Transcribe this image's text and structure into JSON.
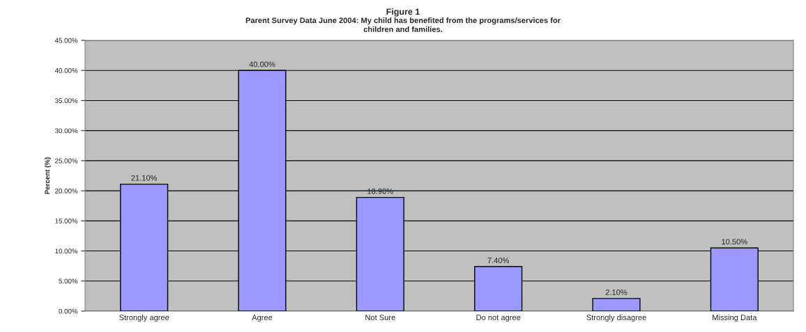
{
  "chart_data": {
    "type": "bar",
    "title": "Figure 1",
    "subtitle": "Parent Survey Data June 2004: My child has benefited from the programs/services for\nchildren and families.",
    "ylabel": "Percent (%)",
    "categories": [
      "Strongly agree",
      "Agree",
      "Not Sure",
      "Do not agree",
      "Strongly disagree",
      "Missing Data"
    ],
    "values": [
      21.1,
      40.0,
      18.9,
      7.4,
      2.1,
      10.5
    ],
    "value_labels": [
      "21.10%",
      "40.00%",
      "18.90%",
      "7.40%",
      "2.10%",
      "10.50%"
    ],
    "color": "#9999ff",
    "ylim": [
      0,
      45
    ],
    "yticks": [
      {
        "value": 0,
        "label": "0.00%"
      },
      {
        "value": 5,
        "label": "5.00%"
      },
      {
        "value": 10,
        "label": "10.00%"
      },
      {
        "value": 15,
        "label": "15.00%"
      },
      {
        "value": 20,
        "label": "20.00%"
      },
      {
        "value": 25,
        "label": "25.00%"
      },
      {
        "value": 30,
        "label": "30.00%"
      },
      {
        "value": 35,
        "label": "35.00%"
      },
      {
        "value": 40,
        "label": "40.00%"
      },
      {
        "value": 45,
        "label": "45.00%"
      }
    ],
    "grid": "y",
    "legend": false
  }
}
